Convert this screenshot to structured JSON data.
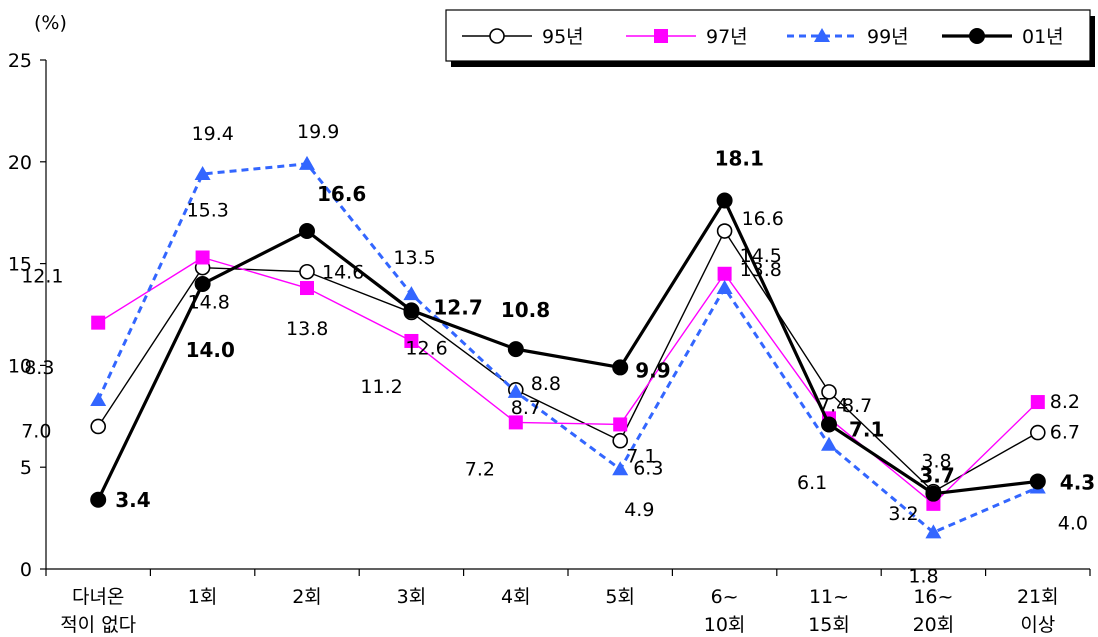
{
  "chart_data": {
    "type": "line",
    "unit_label": "(%)",
    "ylim": [
      0,
      25
    ],
    "y_ticks": [
      0,
      5,
      10,
      15,
      20,
      25
    ],
    "grid": false,
    "legend_position": "top-right",
    "categories": [
      [
        "다녀온",
        "적이 없다"
      ],
      [
        "1회"
      ],
      [
        "2회"
      ],
      [
        "3회"
      ],
      [
        "4회"
      ],
      [
        "5회"
      ],
      [
        "6~",
        "10회"
      ],
      [
        "11~",
        "15회"
      ],
      [
        "16~",
        "20회"
      ],
      [
        "21회",
        "이상"
      ]
    ],
    "series": [
      {
        "name": "95년",
        "values": [
          7.0,
          14.8,
          14.6,
          12.6,
          8.8,
          6.3,
          16.6,
          8.7,
          3.8,
          6.7
        ],
        "color": "#000000",
        "marker": "circle-open",
        "dash": "solid",
        "width": "thin"
      },
      {
        "name": "97년",
        "values": [
          12.1,
          15.3,
          13.8,
          11.2,
          7.2,
          7.1,
          14.5,
          7.4,
          3.2,
          8.2
        ],
        "color": "#FF00FF",
        "marker": "square",
        "dash": "solid",
        "width": "thin"
      },
      {
        "name": "99년",
        "values": [
          8.3,
          19.4,
          19.9,
          13.5,
          8.7,
          4.9,
          13.8,
          6.1,
          1.8,
          4.0
        ],
        "color": "#3366FF",
        "marker": "triangle",
        "dash": "dashed",
        "width": "medium"
      },
      {
        "name": "01년",
        "values": [
          3.4,
          14.0,
          16.6,
          12.7,
          10.8,
          9.9,
          18.1,
          7.1,
          3.7,
          4.3
        ],
        "color": "#000000",
        "marker": "circle-filled",
        "dash": "solid",
        "width": "thick"
      }
    ],
    "data_labels": [
      [
        "7.0",
        "14.8",
        "14.6",
        "12.6",
        "8.8",
        "6.3",
        "16.6",
        "8.7",
        "3.8",
        "6.7"
      ],
      [
        "12.1",
        "15.3",
        "13.8",
        "11.2",
        "7.2",
        "7.1",
        "14.5",
        "7.4",
        "3.2",
        "8.2"
      ],
      [
        "8.3",
        "19.4",
        "19.9",
        "13.5",
        "8.7",
        "4.9",
        "13.8",
        "6.1",
        "1.8",
        "4.0"
      ],
      [
        "3.4",
        "14.0",
        "16.6",
        "12.7",
        "10.8",
        "9.9",
        "18.1",
        "7.1",
        "3.7",
        "4.3"
      ]
    ]
  }
}
